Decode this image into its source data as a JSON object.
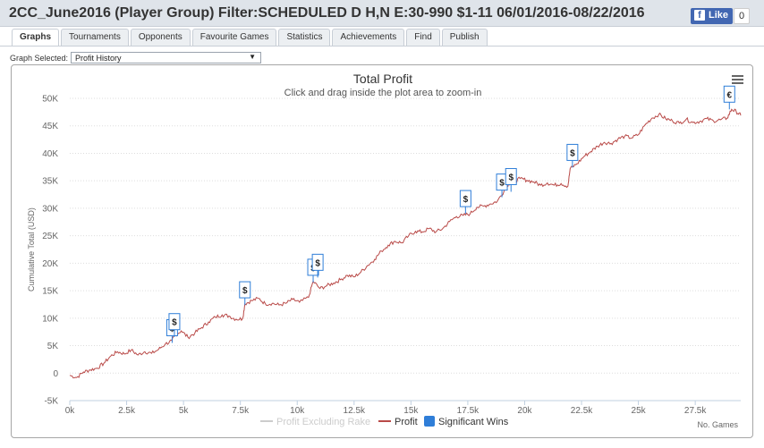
{
  "header": {
    "title": "2CC_June2016 (Player Group) Filter:SCHEDULED D H,N E:30-990 $1-11 06/01/2016-08/22/2016",
    "like_label": "Like",
    "like_count": "0"
  },
  "tabs": [
    "Graphs",
    "Tournaments",
    "Opponents",
    "Favourite Games",
    "Statistics",
    "Achievements",
    "Find",
    "Publish"
  ],
  "active_tab": "Graphs",
  "graph_select": {
    "label": "Graph Selected:",
    "value": "Profit History"
  },
  "colors": {
    "profit": "#b94a48",
    "excl_rake": "#cccccc",
    "sig_wins": "#2f7ed8"
  },
  "chart_data": {
    "type": "line",
    "title": "Total Profit",
    "subtitle": "Click and drag inside the plot area to zoom-in",
    "ylabel": "Cumulative Total (USD)",
    "xlabel": "No. Games",
    "xlim": [
      0,
      29500
    ],
    "ylim": [
      -5000,
      50000
    ],
    "x_ticks": [
      0,
      2500,
      5000,
      7500,
      10000,
      12500,
      15000,
      17500,
      20000,
      22500,
      25000,
      27500
    ],
    "x_tick_labels": [
      "0k",
      "2.5k",
      "5k",
      "7.5k",
      "10k",
      "12.5k",
      "15k",
      "17.5k",
      "20k",
      "22.5k",
      "25k",
      "27.5k"
    ],
    "y_ticks": [
      -5000,
      0,
      5000,
      10000,
      15000,
      20000,
      25000,
      30000,
      35000,
      40000,
      45000,
      50000
    ],
    "y_tick_labels": [
      "-5K",
      "0",
      "5K",
      "10K",
      "15K",
      "20K",
      "25K",
      "30K",
      "35K",
      "40K",
      "45K",
      "50K"
    ],
    "grid": true,
    "legend_position": "bottom-center",
    "series": [
      {
        "name": "Profit",
        "x": [
          0,
          300,
          600,
          900,
          1200,
          1500,
          1800,
          2100,
          2400,
          2700,
          3000,
          3300,
          3600,
          3900,
          4200,
          4500,
          4600,
          4900,
          5200,
          5500,
          5800,
          6100,
          6400,
          6700,
          7000,
          7300,
          7600,
          7700,
          8000,
          8300,
          8600,
          8900,
          9200,
          9500,
          9800,
          10100,
          10500,
          10700,
          11000,
          11300,
          11600,
          11900,
          12200,
          12500,
          12800,
          13100,
          13400,
          13700,
          14000,
          14300,
          14600,
          14900,
          15200,
          15500,
          15800,
          16100,
          16400,
          16700,
          17000,
          17300,
          17600,
          17900,
          18200,
          18500,
          18800,
          19100,
          19300,
          19500,
          19800,
          20100,
          20400,
          20700,
          21000,
          21300,
          21600,
          21900,
          22000,
          22300,
          22600,
          22900,
          23200,
          23500,
          23800,
          24100,
          24400,
          24700,
          25000,
          25300,
          25600,
          25900,
          26200,
          26500,
          26800,
          27100,
          27400,
          27700,
          28000,
          28300,
          28600,
          28900,
          29100,
          29300,
          29500
        ],
        "y": [
          -400,
          -800,
          200,
          600,
          900,
          1800,
          3100,
          3900,
          3500,
          4200,
          3300,
          3900,
          3600,
          4300,
          5300,
          5900,
          6800,
          7700,
          6500,
          7300,
          8300,
          9300,
          10200,
          10600,
          10400,
          9800,
          9900,
          12600,
          13200,
          13600,
          12600,
          12700,
          12400,
          12700,
          13400,
          12900,
          13800,
          16700,
          15400,
          15900,
          16400,
          17000,
          17800,
          17500,
          18400,
          19600,
          20700,
          22200,
          23300,
          24000,
          23700,
          25000,
          25800,
          25700,
          26300,
          25700,
          26300,
          27600,
          28500,
          28700,
          29000,
          30200,
          30400,
          30800,
          31300,
          33200,
          34500,
          34800,
          35400,
          35100,
          34800,
          34200,
          34600,
          34200,
          34500,
          34000,
          37200,
          38100,
          39400,
          40300,
          41300,
          42000,
          41800,
          42600,
          43100,
          42800,
          43400,
          45200,
          46400,
          47100,
          46300,
          45900,
          45500,
          46200,
          45600,
          45800,
          46300,
          45900,
          46100,
          46400,
          48000,
          47600,
          46900
        ]
      }
    ],
    "legend": [
      {
        "label": "Profit Excluding Rake"
      },
      {
        "label": "Profit"
      },
      {
        "label": "Significant Wins"
      }
    ],
    "significant_wins": [
      {
        "x": 4500,
        "y": 5500,
        "label": "$"
      },
      {
        "x": 4600,
        "y": 6600,
        "label": "$"
      },
      {
        "x": 7700,
        "y": 12400,
        "label": "$"
      },
      {
        "x": 10700,
        "y": 16500,
        "label": "$"
      },
      {
        "x": 10900,
        "y": 17400,
        "label": "$"
      },
      {
        "x": 17400,
        "y": 29000,
        "label": "$"
      },
      {
        "x": 19000,
        "y": 32000,
        "label": "$"
      },
      {
        "x": 19400,
        "y": 33000,
        "label": "$"
      },
      {
        "x": 22100,
        "y": 37400,
        "label": "$"
      },
      {
        "x": 29000,
        "y": 48000,
        "label": "€"
      }
    ]
  }
}
